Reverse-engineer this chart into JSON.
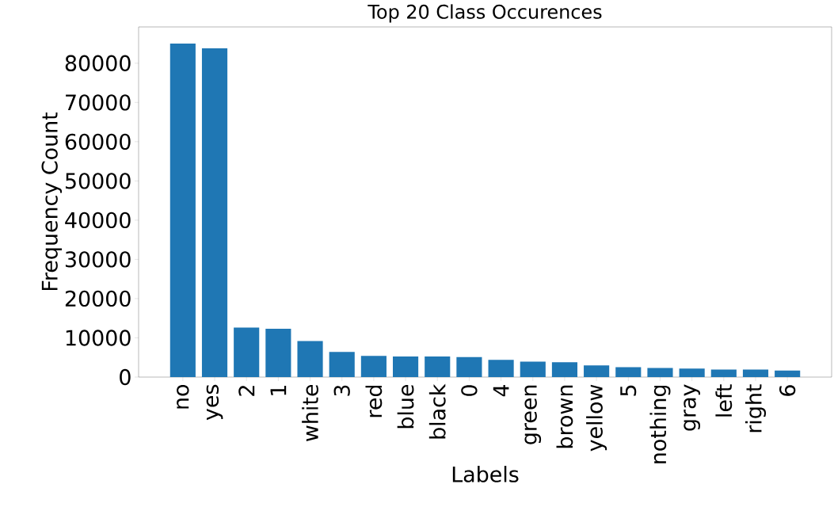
{
  "chart_data": {
    "type": "bar",
    "title": "Top 20 Class Occurences",
    "xlabel": "Labels",
    "ylabel": "Frequency Count",
    "categories": [
      "no",
      "yes",
      "2",
      "1",
      "white",
      "3",
      "red",
      "blue",
      "black",
      "0",
      "4",
      "green",
      "brown",
      "yellow",
      "5",
      "nothing",
      "gray",
      "left",
      "right",
      "6"
    ],
    "values": [
      85000,
      83800,
      12600,
      12300,
      9200,
      6400,
      5400,
      5250,
      5250,
      5100,
      4400,
      3950,
      3800,
      3000,
      2500,
      2300,
      2150,
      1900,
      1900,
      1650
    ],
    "color": "#1f77b4",
    "ylim": [
      0,
      89250
    ],
    "yticks": [
      0,
      10000,
      20000,
      30000,
      40000,
      50000,
      60000,
      70000,
      80000
    ],
    "grid": false
  }
}
